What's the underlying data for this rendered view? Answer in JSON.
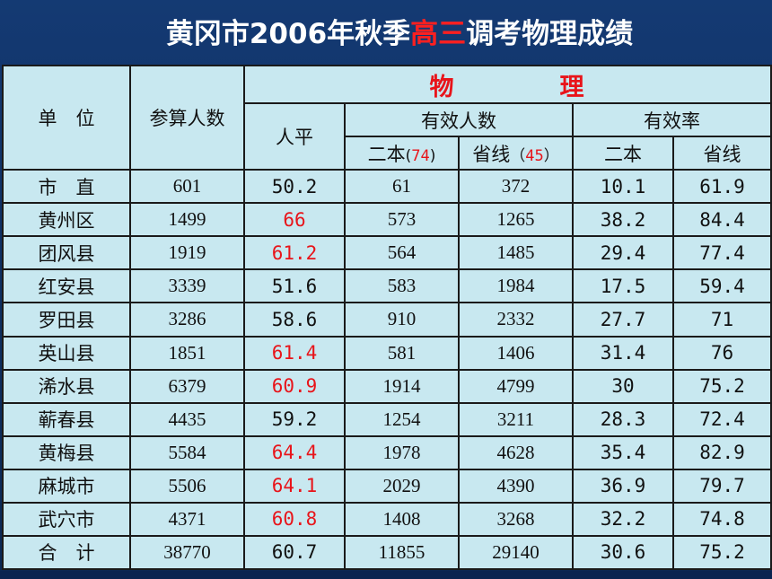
{
  "title": {
    "part1": "黄冈市2006年秋季",
    "part2": "高三",
    "part3": "调考物理成绩"
  },
  "header": {
    "unit": "单　位",
    "participants": "参算人数",
    "subject": "物　　　　理",
    "avg": "人平",
    "effective_count": "有效人数",
    "effective_rate": "有效率",
    "erben_label": "二本",
    "erben_score": "74",
    "shengxian_label": "省线",
    "shengxian_score": "45",
    "rate_erben": "二本",
    "rate_shengxian": "省线"
  },
  "rows": [
    {
      "unit": "市　直",
      "participants": "601",
      "avg": "50.2",
      "avg_highlight": false,
      "erben": "61",
      "shengxian": "372",
      "rate_erben": "10.1",
      "rate_shengxian": "61.9"
    },
    {
      "unit": "黄州区",
      "participants": "1499",
      "avg": "66",
      "avg_highlight": true,
      "erben": "573",
      "shengxian": "1265",
      "rate_erben": "38.2",
      "rate_shengxian": "84.4"
    },
    {
      "unit": "团风县",
      "participants": "1919",
      "avg": "61.2",
      "avg_highlight": true,
      "erben": "564",
      "shengxian": "1485",
      "rate_erben": "29.4",
      "rate_shengxian": "77.4"
    },
    {
      "unit": "红安县",
      "participants": "3339",
      "avg": "51.6",
      "avg_highlight": false,
      "erben": "583",
      "shengxian": "1984",
      "rate_erben": "17.5",
      "rate_shengxian": "59.4"
    },
    {
      "unit": "罗田县",
      "participants": "3286",
      "avg": "58.6",
      "avg_highlight": false,
      "erben": "910",
      "shengxian": "2332",
      "rate_erben": "27.7",
      "rate_shengxian": "71"
    },
    {
      "unit": "英山县",
      "participants": "1851",
      "avg": "61.4",
      "avg_highlight": true,
      "erben": "581",
      "shengxian": "1406",
      "rate_erben": "31.4",
      "rate_shengxian": "76"
    },
    {
      "unit": "浠水县",
      "participants": "6379",
      "avg": "60.9",
      "avg_highlight": true,
      "erben": "1914",
      "shengxian": "4799",
      "rate_erben": "30",
      "rate_shengxian": "75.2"
    },
    {
      "unit": "蕲春县",
      "participants": "4435",
      "avg": "59.2",
      "avg_highlight": false,
      "erben": "1254",
      "shengxian": "3211",
      "rate_erben": "28.3",
      "rate_shengxian": "72.4"
    },
    {
      "unit": "黄梅县",
      "participants": "5584",
      "avg": "64.4",
      "avg_highlight": true,
      "erben": "1978",
      "shengxian": "4628",
      "rate_erben": "35.4",
      "rate_shengxian": "82.9"
    },
    {
      "unit": "麻城市",
      "participants": "5506",
      "avg": "64.1",
      "avg_highlight": true,
      "erben": "2029",
      "shengxian": "4390",
      "rate_erben": "36.9",
      "rate_shengxian": "79.7"
    },
    {
      "unit": "武穴市",
      "participants": "4371",
      "avg": "60.8",
      "avg_highlight": true,
      "erben": "1408",
      "shengxian": "3268",
      "rate_erben": "32.2",
      "rate_shengxian": "74.8"
    },
    {
      "unit": "合　计",
      "participants": "38770",
      "avg": "60.7",
      "avg_highlight": false,
      "erben": "11855",
      "shengxian": "29140",
      "rate_erben": "30.6",
      "rate_shengxian": "75.2"
    }
  ],
  "colors": {
    "background": "#0f3064",
    "table_fill": "#c8e8f0",
    "highlight": "#e8141a",
    "title_text": "#ffffff"
  }
}
